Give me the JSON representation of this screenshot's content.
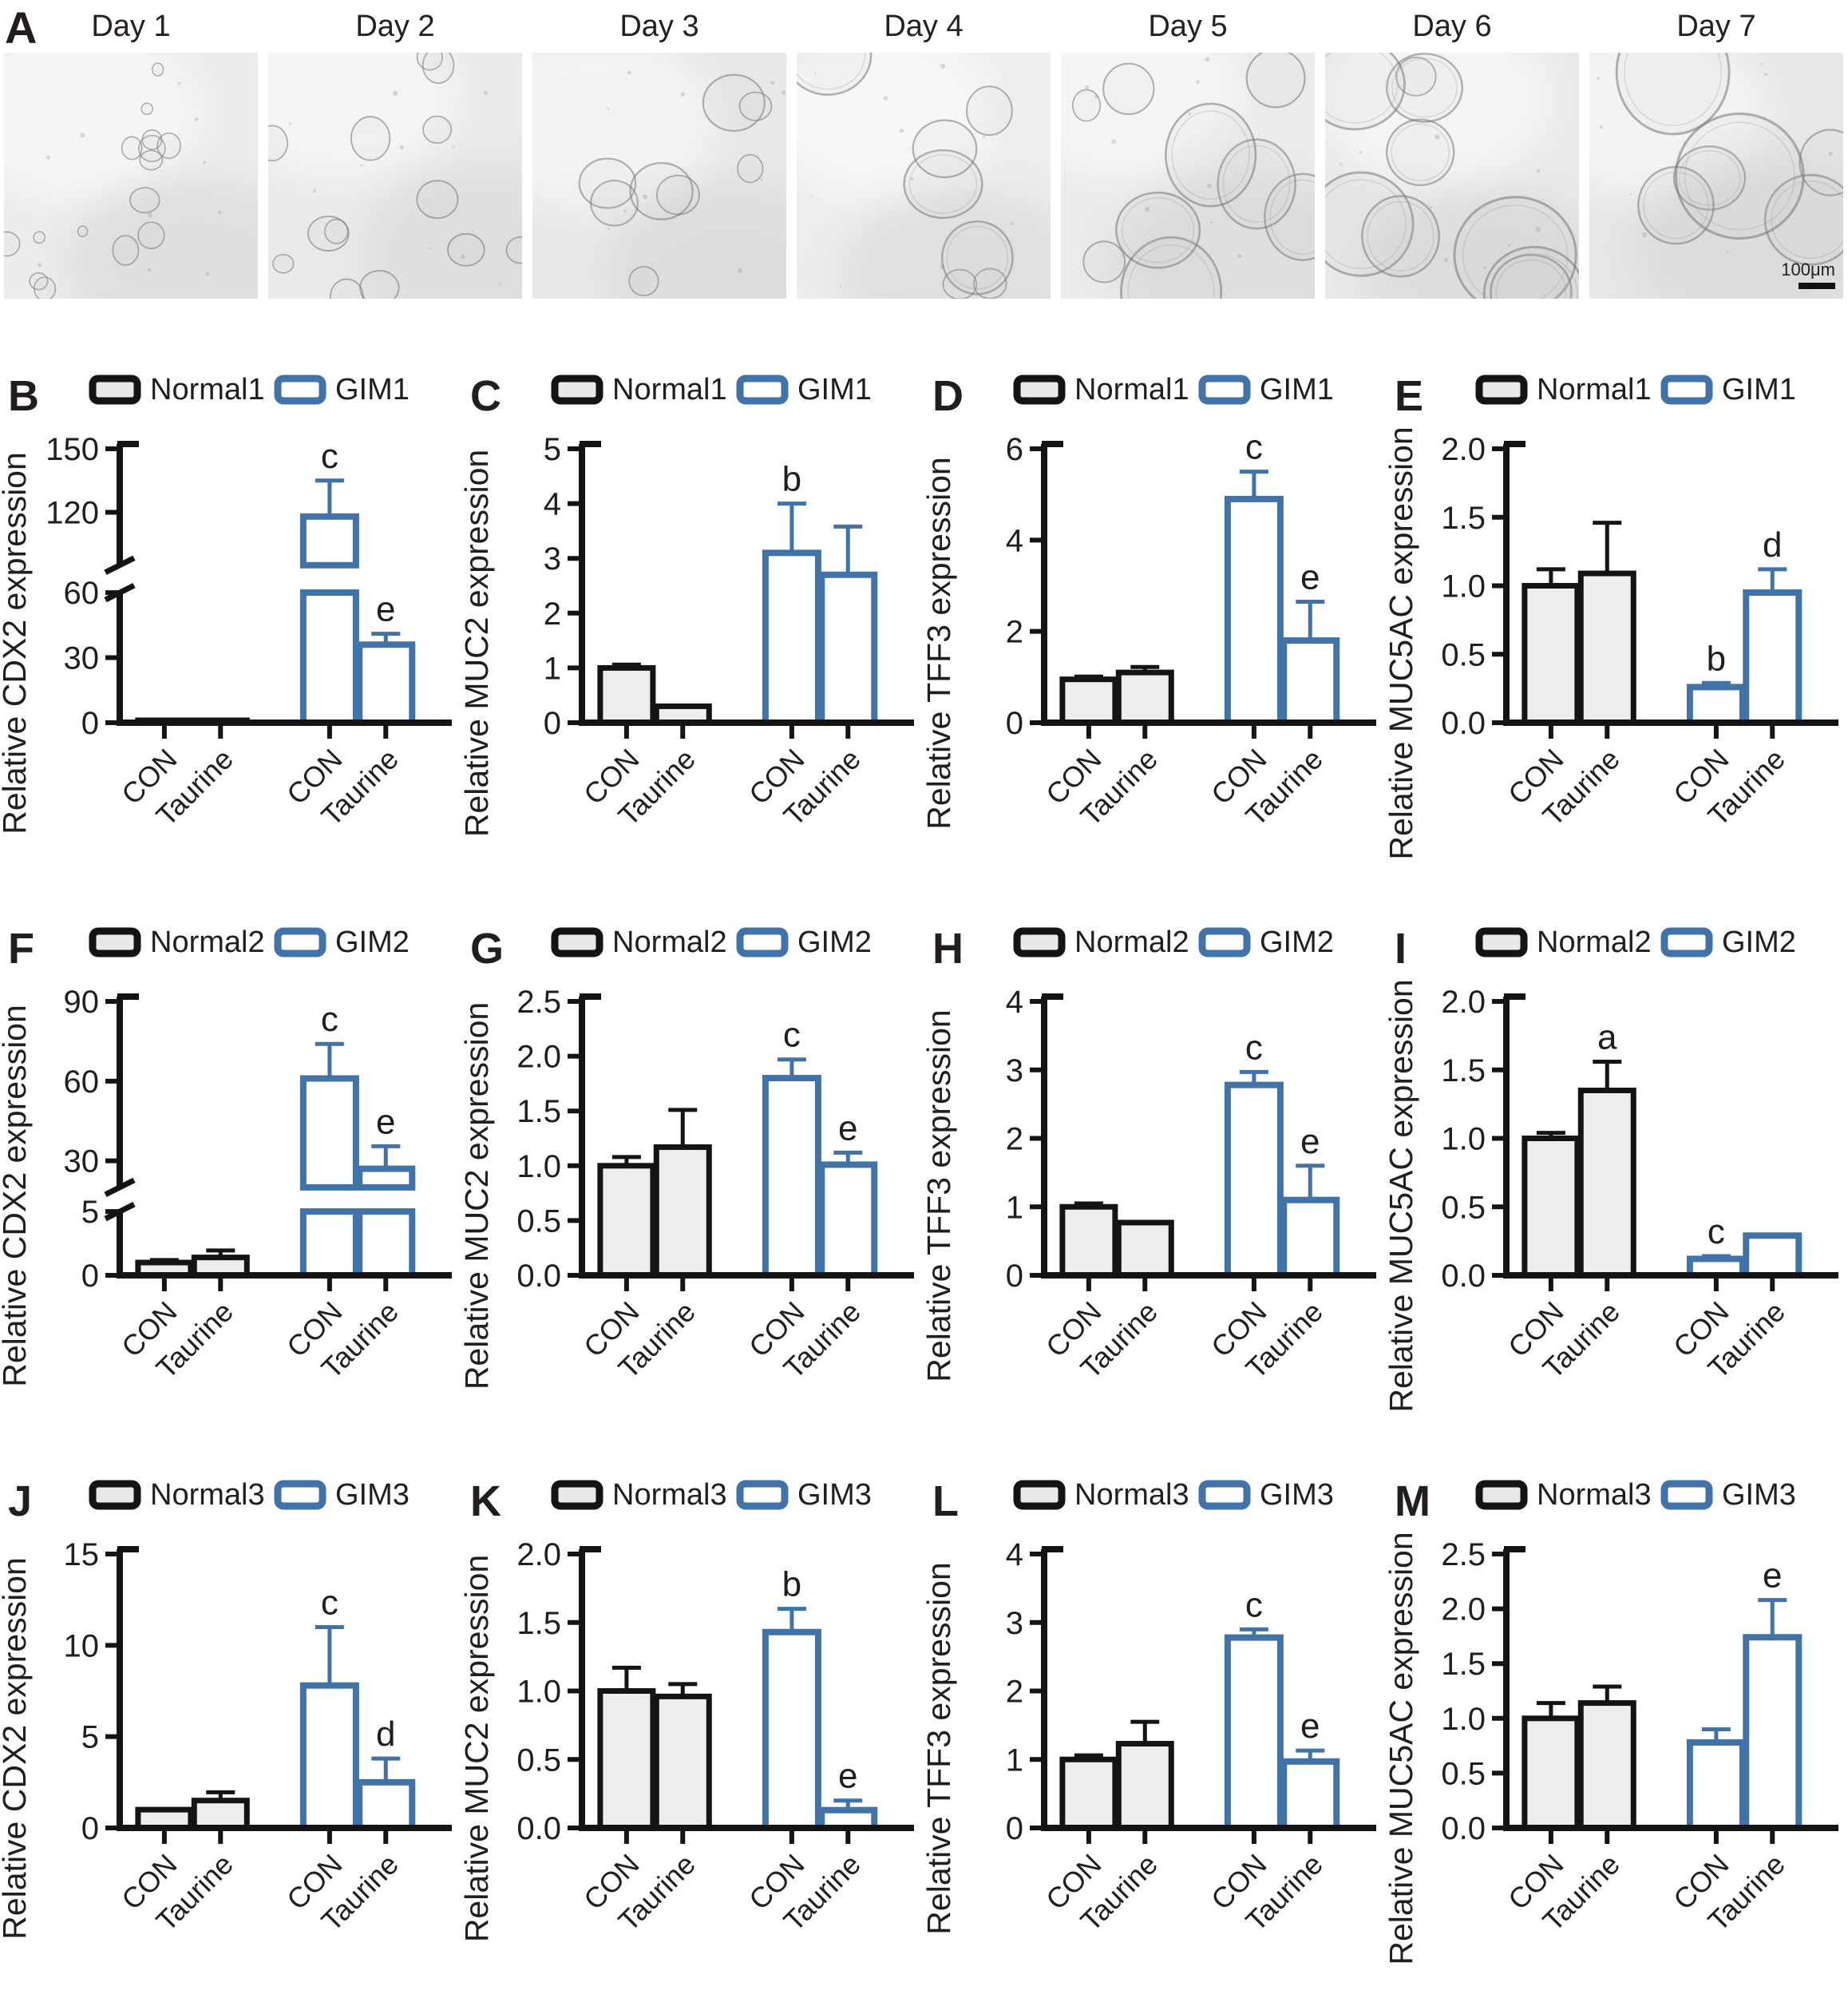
{
  "panel_a": {
    "label": "A",
    "days": [
      "Day 1",
      "Day 2",
      "Day 3",
      "Day 4",
      "Day 5",
      "Day 6",
      "Day 7"
    ],
    "scale_bar_label": "100μm"
  },
  "style": {
    "text": "#231e1e",
    "axis": "#161313",
    "normal_fill": "#ededed",
    "normal_stroke": "#161313",
    "legend_normal_fill": "#e8e8e8",
    "gim_fill": "#ffffff",
    "gim_stroke": "#4173a9",
    "micro_bg": "#e9e9e9"
  },
  "chart_data": [
    {
      "type": "bar",
      "panel": "B",
      "ylabel": "Relative CDX2 expression",
      "legend": [
        {
          "label": "Normal1",
          "series": "normal"
        },
        {
          "label": "GIM1",
          "series": "gim"
        }
      ],
      "categories": [
        "CON",
        "Taurine",
        "CON",
        "Taurine"
      ],
      "groups": [
        "normal",
        "normal",
        "gim",
        "gim"
      ],
      "values": [
        1.0,
        1.0,
        118,
        36
      ],
      "errors": [
        0.3,
        0.4,
        17,
        5
      ],
      "sig": [
        "",
        "",
        "c",
        "e"
      ],
      "axis": {
        "broken": true,
        "lower": {
          "range": [
            0,
            60
          ],
          "ticks": [
            0,
            30,
            60
          ]
        },
        "upper": {
          "range": [
            95,
            150
          ],
          "ticks": [
            120,
            150
          ]
        },
        "break": {
          "lower_frac": 0.475,
          "gap_frac": 0.1
        },
        "format": "int"
      }
    },
    {
      "type": "bar",
      "panel": "C",
      "ylabel": "Relative MUC2 expression",
      "legend": [
        {
          "label": "Normal1",
          "series": "normal"
        },
        {
          "label": "GIM1",
          "series": "gim"
        }
      ],
      "categories": [
        "CON",
        "Taurine",
        "CON",
        "Taurine"
      ],
      "groups": [
        "normal",
        "normal",
        "gim",
        "gim"
      ],
      "values": [
        1.0,
        0.3,
        3.1,
        2.7
      ],
      "errors": [
        0.06,
        0.02,
        0.9,
        0.88
      ],
      "sig": [
        "",
        "",
        "b",
        ""
      ],
      "axis": {
        "broken": false,
        "range": [
          0,
          5
        ],
        "ticks": [
          0,
          1,
          2,
          3,
          4,
          5
        ],
        "format": "int"
      }
    },
    {
      "type": "bar",
      "panel": "D",
      "ylabel": "Relative TFF3 expression",
      "legend": [
        {
          "label": "Normal1",
          "series": "normal"
        },
        {
          "label": "GIM1",
          "series": "gim"
        }
      ],
      "categories": [
        "CON",
        "Taurine",
        "CON",
        "Taurine"
      ],
      "groups": [
        "normal",
        "normal",
        "gim",
        "gim"
      ],
      "values": [
        0.95,
        1.1,
        4.9,
        1.8
      ],
      "errors": [
        0.06,
        0.12,
        0.6,
        0.85
      ],
      "sig": [
        "",
        "",
        "c",
        "e"
      ],
      "axis": {
        "broken": false,
        "range": [
          0,
          6
        ],
        "ticks": [
          0,
          2,
          4,
          6
        ],
        "format": "int"
      }
    },
    {
      "type": "bar",
      "panel": "E",
      "ylabel": "Relative MUC5AC expression",
      "legend": [
        {
          "label": "Normal1",
          "series": "normal"
        },
        {
          "label": "GIM1",
          "series": "gim"
        }
      ],
      "categories": [
        "CON",
        "Taurine",
        "CON",
        "Taurine"
      ],
      "groups": [
        "normal",
        "normal",
        "gim",
        "gim"
      ],
      "values": [
        1.0,
        1.09,
        0.26,
        0.95
      ],
      "errors": [
        0.12,
        0.37,
        0.03,
        0.17
      ],
      "sig": [
        "",
        "",
        "b",
        "d"
      ],
      "axis": {
        "broken": false,
        "range": [
          0,
          2
        ],
        "ticks": [
          0,
          0.5,
          1,
          1.5,
          2
        ],
        "format": "dec1"
      }
    },
    {
      "type": "bar",
      "panel": "F",
      "ylabel": "Relative CDX2 expression",
      "legend": [
        {
          "label": "Normal2",
          "series": "normal"
        },
        {
          "label": "GIM2",
          "series": "gim"
        }
      ],
      "categories": [
        "CON",
        "Taurine",
        "CON",
        "Taurine"
      ],
      "groups": [
        "normal",
        "normal",
        "gim",
        "gim"
      ],
      "values": [
        1.0,
        1.4,
        61,
        27
      ],
      "errors": [
        0.2,
        0.55,
        13,
        8.5
      ],
      "sig": [
        "",
        "",
        "c",
        "e"
      ],
      "axis": {
        "broken": true,
        "lower": {
          "range": [
            0,
            5
          ],
          "ticks": [
            0,
            5
          ]
        },
        "upper": {
          "range": [
            20,
            90
          ],
          "ticks": [
            30,
            60,
            90
          ]
        },
        "break": {
          "lower_frac": 0.233,
          "gap_frac": 0.088
        },
        "format": "int"
      }
    },
    {
      "type": "bar",
      "panel": "G",
      "ylabel": "Relative MUC2 expression",
      "legend": [
        {
          "label": "Normal2",
          "series": "normal"
        },
        {
          "label": "GIM2",
          "series": "gim"
        }
      ],
      "categories": [
        "CON",
        "Taurine",
        "CON",
        "Taurine"
      ],
      "groups": [
        "normal",
        "normal",
        "gim",
        "gim"
      ],
      "values": [
        1.0,
        1.17,
        1.8,
        1.01
      ],
      "errors": [
        0.08,
        0.34,
        0.17,
        0.11
      ],
      "sig": [
        "",
        "",
        "c",
        "e"
      ],
      "axis": {
        "broken": false,
        "range": [
          0,
          2.5
        ],
        "ticks": [
          0,
          0.5,
          1,
          1.5,
          2,
          2.5
        ],
        "format": "dec1"
      }
    },
    {
      "type": "bar",
      "panel": "H",
      "ylabel": "Relative TFF3 expression",
      "legend": [
        {
          "label": "Normal2",
          "series": "normal"
        },
        {
          "label": "GIM2",
          "series": "gim"
        }
      ],
      "categories": [
        "CON",
        "Taurine",
        "CON",
        "Taurine"
      ],
      "groups": [
        "normal",
        "normal",
        "gim",
        "gim"
      ],
      "values": [
        1.0,
        0.77,
        2.78,
        1.1
      ],
      "errors": [
        0.05,
        0.03,
        0.19,
        0.5
      ],
      "sig": [
        "",
        "",
        "c",
        "e"
      ],
      "axis": {
        "broken": false,
        "range": [
          0,
          4
        ],
        "ticks": [
          0,
          1,
          2,
          3,
          4
        ],
        "format": "int"
      }
    },
    {
      "type": "bar",
      "panel": "I",
      "ylabel": "Relative MUC5AC expression",
      "legend": [
        {
          "label": "Normal2",
          "series": "normal"
        },
        {
          "label": "GIM2",
          "series": "gim"
        }
      ],
      "categories": [
        "CON",
        "Taurine",
        "CON",
        "Taurine"
      ],
      "groups": [
        "normal",
        "normal",
        "gim",
        "gim"
      ],
      "values": [
        1.0,
        1.35,
        0.12,
        0.29
      ],
      "errors": [
        0.04,
        0.21,
        0.02,
        0.01
      ],
      "sig": [
        "",
        "a",
        "c",
        ""
      ],
      "axis": {
        "broken": false,
        "range": [
          0,
          2
        ],
        "ticks": [
          0,
          0.5,
          1,
          1.5,
          2
        ],
        "format": "dec1"
      }
    },
    {
      "type": "bar",
      "panel": "J",
      "ylabel": "Relative CDX2 expression",
      "legend": [
        {
          "label": "Normal3",
          "series": "normal"
        },
        {
          "label": "GIM3",
          "series": "gim"
        }
      ],
      "categories": [
        "CON",
        "Taurine",
        "CON",
        "Taurine"
      ],
      "groups": [
        "normal",
        "normal",
        "gim",
        "gim"
      ],
      "values": [
        1.0,
        1.5,
        7.8,
        2.5
      ],
      "errors": [
        0.1,
        0.45,
        3.2,
        1.3
      ],
      "sig": [
        "",
        "",
        "c",
        "d"
      ],
      "axis": {
        "broken": false,
        "range": [
          0,
          15
        ],
        "ticks": [
          0,
          5,
          10,
          15
        ],
        "format": "int"
      }
    },
    {
      "type": "bar",
      "panel": "K",
      "ylabel": "Relative MUC2 expression",
      "legend": [
        {
          "label": "Normal3",
          "series": "normal"
        },
        {
          "label": "GIM3",
          "series": "gim"
        }
      ],
      "categories": [
        "CON",
        "Taurine",
        "CON",
        "Taurine"
      ],
      "groups": [
        "normal",
        "normal",
        "gim",
        "gim"
      ],
      "values": [
        1.0,
        0.96,
        1.43,
        0.13
      ],
      "errors": [
        0.17,
        0.09,
        0.17,
        0.07
      ],
      "sig": [
        "",
        "",
        "b",
        "e"
      ],
      "axis": {
        "broken": false,
        "range": [
          0,
          2
        ],
        "ticks": [
          0,
          0.5,
          1,
          1.5,
          2
        ],
        "format": "dec1"
      }
    },
    {
      "type": "bar",
      "panel": "L",
      "ylabel": "Relative TFF3 expression",
      "legend": [
        {
          "label": "Normal3",
          "series": "normal"
        },
        {
          "label": "GIM3",
          "series": "gim"
        }
      ],
      "categories": [
        "CON",
        "Taurine",
        "CON",
        "Taurine"
      ],
      "groups": [
        "normal",
        "normal",
        "gim",
        "gim"
      ],
      "values": [
        1.0,
        1.23,
        2.78,
        0.97
      ],
      "errors": [
        0.06,
        0.32,
        0.12,
        0.16
      ],
      "sig": [
        "",
        "",
        "c",
        "e"
      ],
      "axis": {
        "broken": false,
        "range": [
          0,
          4
        ],
        "ticks": [
          0,
          1,
          2,
          3,
          4
        ],
        "format": "int"
      }
    },
    {
      "type": "bar",
      "panel": "M",
      "ylabel": "Relative MUC5AC expression",
      "legend": [
        {
          "label": "Normal3",
          "series": "normal"
        },
        {
          "label": "GIM3",
          "series": "gim"
        }
      ],
      "categories": [
        "CON",
        "Taurine",
        "CON",
        "Taurine"
      ],
      "groups": [
        "normal",
        "normal",
        "gim",
        "gim"
      ],
      "values": [
        1.0,
        1.14,
        0.78,
        1.74
      ],
      "errors": [
        0.14,
        0.15,
        0.12,
        0.34
      ],
      "sig": [
        "",
        "",
        "",
        "e"
      ],
      "axis": {
        "broken": false,
        "range": [
          0,
          2.5
        ],
        "ticks": [
          0,
          0.5,
          1,
          1.5,
          2,
          2.5
        ],
        "format": "dec1"
      }
    }
  ]
}
